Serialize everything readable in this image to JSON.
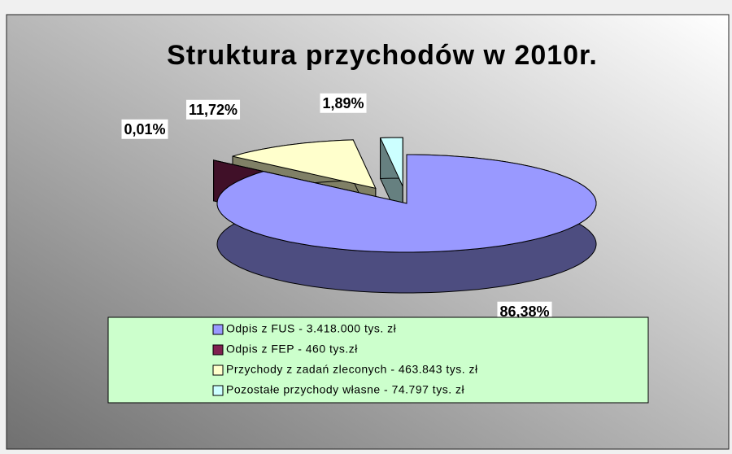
{
  "chart_data": {
    "type": "pie3d",
    "title": "Struktura przychodów w 2010r.",
    "series": [
      {
        "name": "Odpis z FUS - 3.418.000 tys. zł",
        "color": "#9999ff",
        "values": [
          86.38
        ],
        "value_labels": [
          "86,38%"
        ]
      },
      {
        "name": "Odpis z FEP - 460 tys.zł",
        "color": "#802050",
        "values": [
          0.01
        ],
        "value_labels": [
          "0,01%"
        ]
      },
      {
        "name": "Przychody z zadań zleconych - 463.843 tys. zł",
        "color": "#ffffcc",
        "values": [
          11.72
        ],
        "value_labels": [
          "11,72%"
        ]
      },
      {
        "name": "Pozostałe przychody własne - 74.797 tys. zł",
        "color": "#ccffff",
        "values": [
          1.89
        ],
        "value_labels": [
          "1,89%"
        ]
      }
    ],
    "legend": "bottom"
  }
}
